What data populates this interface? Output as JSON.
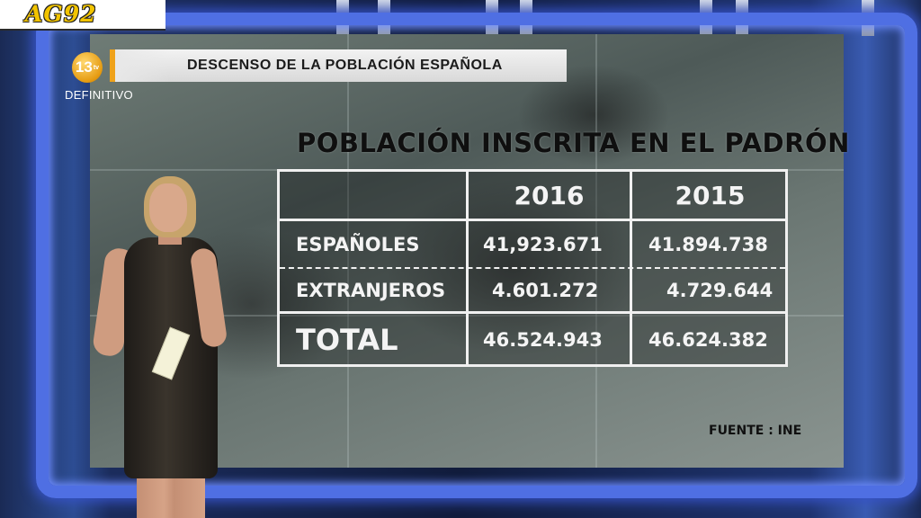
{
  "watermark": {
    "text": "AG92"
  },
  "channel": {
    "logo": "13",
    "logo_suffix": "tv",
    "status": "DEFINITIVO"
  },
  "headline": {
    "text": "DESCENSO DE LA POBLACIÓN ESPAÑOLA"
  },
  "graphic": {
    "title": "POBLACIÓN INSCRITA EN EL PADRÓN",
    "columns": [
      "2016",
      "2015"
    ],
    "rows": [
      {
        "label": "ESPAÑOLES",
        "values": [
          "41,923.671",
          "41.894.738"
        ]
      },
      {
        "label": "EXTRANJEROS",
        "values": [
          "4.601.272",
          "4.729.644"
        ]
      },
      {
        "label": "TOTAL",
        "values": [
          "46.524.943",
          "46.624.382"
        ]
      }
    ],
    "source": "FUENTE : INE"
  },
  "colors": {
    "frame": "#4f6fe3",
    "logo": "#e59a10",
    "watermark": "#f2c400"
  }
}
